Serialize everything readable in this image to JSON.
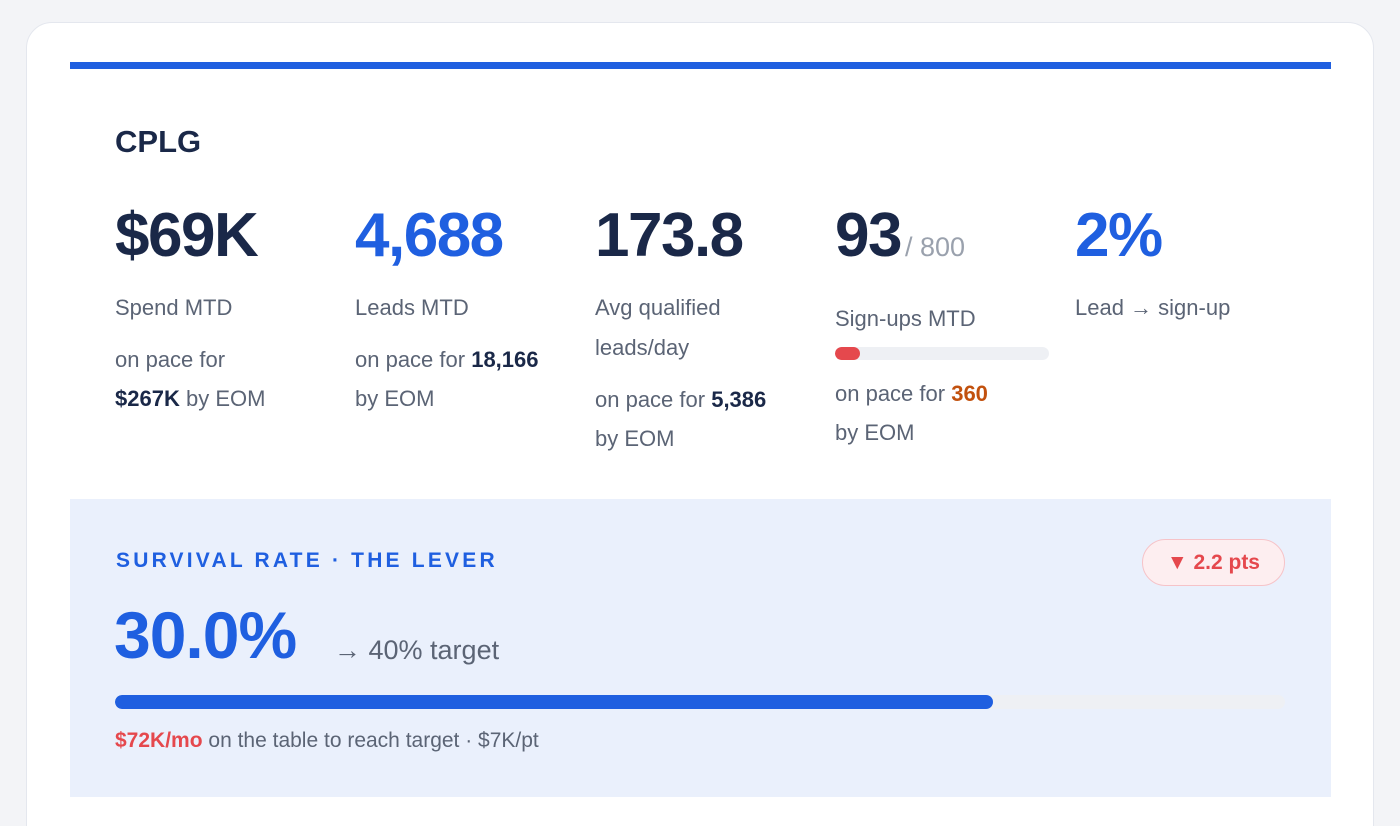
{
  "section": {
    "title": "CPLG"
  },
  "metrics": [
    {
      "value": "$69K",
      "label": "Spend MTD",
      "pace_prefix": "on pace for",
      "pace_value": "$267K",
      "pace_suffix": "by EOM"
    },
    {
      "value": "4,688",
      "label": "Leads MTD",
      "pace_prefix": "on pace for",
      "pace_value": "18,166",
      "pace_suffix": "by EOM"
    },
    {
      "value": "173.8",
      "label": "Avg qualified leads/day",
      "pace_prefix": "on pace for",
      "pace_value": "5,386",
      "pace_suffix": "by EOM"
    },
    {
      "value": "93",
      "value_suffix": "/ 800",
      "label": "Sign-ups MTD",
      "progress_fraction": 0.116,
      "pace_prefix": "on pace for",
      "pace_value": "360",
      "pace_suffix": "by EOM"
    },
    {
      "value": "2%",
      "label": "Lead → sign-up"
    }
  ],
  "lever": {
    "title": "SURVIVAL RATE · THE LEVER",
    "badge": "▼ 2.2 pts",
    "value": "30.0%",
    "target_text": "→ 40% target",
    "progress_fraction": 0.75,
    "footnote_highlight": "$72K/mo",
    "footnote_rest": "on the table to reach target · $7K/pt"
  },
  "colors": {
    "accent": "#1f5fe0",
    "negative": "#e5484d",
    "warning": "#c2510e",
    "text_dark": "#1a2848",
    "text_muted": "#5b6475"
  }
}
